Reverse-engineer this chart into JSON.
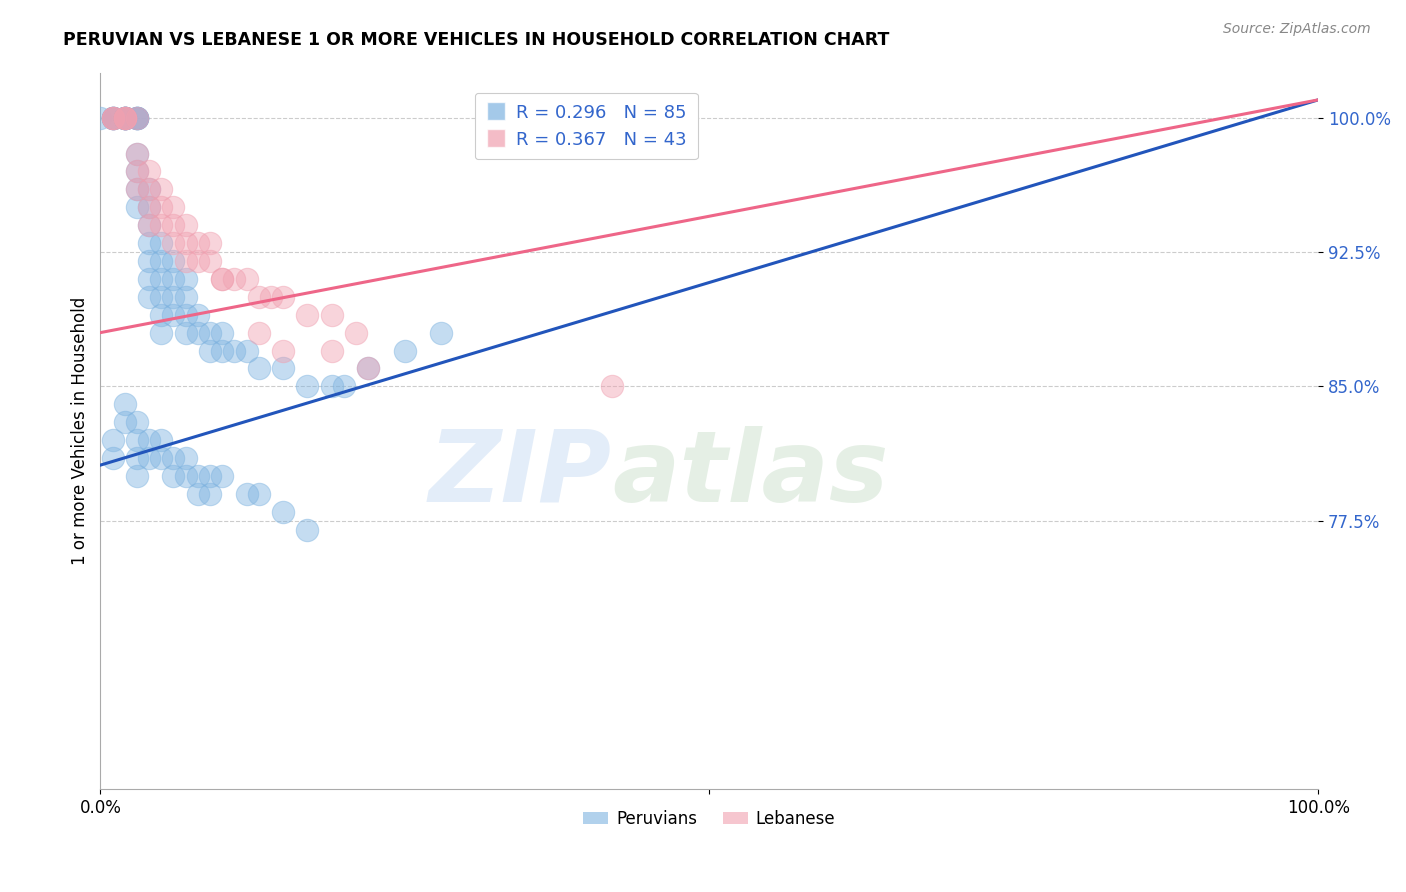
{
  "title": "PERUVIAN VS LEBANESE 1 OR MORE VEHICLES IN HOUSEHOLD CORRELATION CHART",
  "ylabel": "1 or more Vehicles in Household",
  "source": "Source: ZipAtlas.com",
  "watermark_zip": "ZIP",
  "watermark_atlas": "atlas",
  "ytick_labels": [
    "100.0%",
    "92.5%",
    "85.0%",
    "77.5%"
  ],
  "ytick_values": [
    1.0,
    0.925,
    0.85,
    0.775
  ],
  "xlim": [
    0.0,
    1.0
  ],
  "ylim": [
    0.625,
    1.025
  ],
  "legend_label1": "R = 0.296   N = 85",
  "legend_label2": "R = 0.367   N = 43",
  "peruvian_color": "#7EB3E0",
  "lebanese_color": "#F0A0B0",
  "peruvian_line_color": "#2255BB",
  "lebanese_line_color": "#EE6688",
  "peruvians_x": [
    0.0,
    0.01,
    0.01,
    0.01,
    0.01,
    0.01,
    0.02,
    0.02,
    0.02,
    0.02,
    0.02,
    0.02,
    0.02,
    0.02,
    0.03,
    0.03,
    0.03,
    0.03,
    0.03,
    0.03,
    0.03,
    0.03,
    0.03,
    0.04,
    0.04,
    0.04,
    0.04,
    0.04,
    0.04,
    0.04,
    0.05,
    0.05,
    0.05,
    0.05,
    0.05,
    0.05,
    0.06,
    0.06,
    0.06,
    0.06,
    0.07,
    0.07,
    0.07,
    0.07,
    0.08,
    0.08,
    0.09,
    0.09,
    0.1,
    0.1,
    0.11,
    0.12,
    0.13,
    0.15,
    0.17,
    0.19,
    0.2,
    0.22,
    0.25,
    0.28,
    0.01,
    0.01,
    0.02,
    0.02,
    0.03,
    0.03,
    0.03,
    0.03,
    0.04,
    0.04,
    0.05,
    0.05,
    0.06,
    0.06,
    0.07,
    0.07,
    0.08,
    0.08,
    0.09,
    0.09,
    0.1,
    0.12,
    0.13,
    0.15,
    0.17
  ],
  "peruvians_y": [
    1.0,
    1.0,
    1.0,
    1.0,
    1.0,
    1.0,
    1.0,
    1.0,
    1.0,
    1.0,
    1.0,
    1.0,
    1.0,
    1.0,
    1.0,
    1.0,
    1.0,
    1.0,
    1.0,
    0.98,
    0.97,
    0.96,
    0.95,
    0.96,
    0.95,
    0.94,
    0.93,
    0.92,
    0.91,
    0.9,
    0.93,
    0.92,
    0.91,
    0.9,
    0.89,
    0.88,
    0.92,
    0.91,
    0.9,
    0.89,
    0.91,
    0.9,
    0.89,
    0.88,
    0.89,
    0.88,
    0.88,
    0.87,
    0.88,
    0.87,
    0.87,
    0.87,
    0.86,
    0.86,
    0.85,
    0.85,
    0.85,
    0.86,
    0.87,
    0.88,
    0.82,
    0.81,
    0.84,
    0.83,
    0.83,
    0.82,
    0.81,
    0.8,
    0.82,
    0.81,
    0.82,
    0.81,
    0.81,
    0.8,
    0.81,
    0.8,
    0.8,
    0.79,
    0.8,
    0.79,
    0.8,
    0.79,
    0.79,
    0.78,
    0.77
  ],
  "lebanese_x": [
    0.01,
    0.01,
    0.01,
    0.02,
    0.02,
    0.02,
    0.02,
    0.03,
    0.03,
    0.03,
    0.03,
    0.04,
    0.04,
    0.04,
    0.04,
    0.05,
    0.05,
    0.05,
    0.06,
    0.06,
    0.06,
    0.07,
    0.07,
    0.07,
    0.08,
    0.08,
    0.09,
    0.09,
    0.1,
    0.1,
    0.11,
    0.12,
    0.13,
    0.14,
    0.15,
    0.17,
    0.19,
    0.21,
    0.13,
    0.15,
    0.19,
    0.22,
    0.42
  ],
  "lebanese_y": [
    1.0,
    1.0,
    1.0,
    1.0,
    1.0,
    1.0,
    1.0,
    1.0,
    0.98,
    0.97,
    0.96,
    0.97,
    0.96,
    0.95,
    0.94,
    0.96,
    0.95,
    0.94,
    0.95,
    0.94,
    0.93,
    0.94,
    0.93,
    0.92,
    0.93,
    0.92,
    0.93,
    0.92,
    0.91,
    0.91,
    0.91,
    0.91,
    0.9,
    0.9,
    0.9,
    0.89,
    0.89,
    0.88,
    0.88,
    0.87,
    0.87,
    0.86,
    0.85
  ],
  "peruvian_trend_x": [
    0.0,
    1.0
  ],
  "peruvian_trend_y": [
    0.806,
    1.01
  ],
  "lebanese_trend_x": [
    0.0,
    1.0
  ],
  "lebanese_trend_y": [
    0.88,
    1.01
  ]
}
